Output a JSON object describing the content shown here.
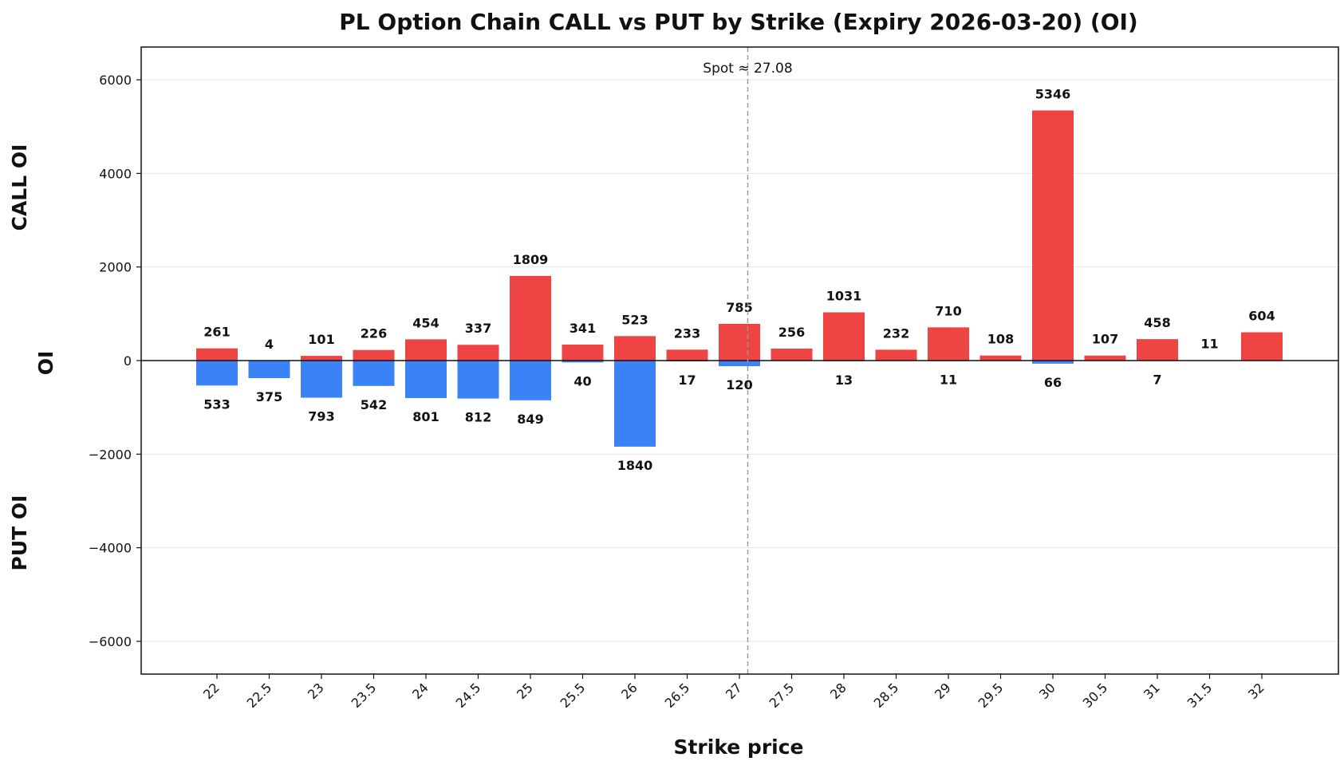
{
  "chart_data": {
    "type": "bar",
    "title": "PL Option Chain CALL vs PUT by Strike (Expiry 2026-03-20) (OI)",
    "xlabel": "Strike price",
    "ylabel": "OI",
    "ylabel_top": "CALL OI",
    "ylabel_bottom": "PUT OI",
    "ylim": [
      -6700,
      6700
    ],
    "yticks": [
      6000,
      4000,
      2000,
      0,
      -2000,
      -4000,
      -6000
    ],
    "ytick_labels": [
      "6000",
      "4000",
      "2000",
      "0",
      "−2000",
      "−4000",
      "−6000"
    ],
    "grid": true,
    "categories": [
      "22",
      "22.5",
      "23",
      "23.5",
      "24",
      "24.5",
      "25",
      "25.5",
      "26",
      "26.5",
      "27",
      "27.5",
      "28",
      "28.5",
      "29",
      "29.5",
      "30",
      "30.5",
      "31",
      "31.5",
      "32"
    ],
    "series": [
      {
        "color": "#ef4444",
        "values": [
          261,
          4,
          101,
          226,
          454,
          337,
          1809,
          341,
          523,
          233,
          785,
          256,
          1031,
          232,
          710,
          108,
          5346,
          107,
          458,
          11,
          604
        ]
      },
      {
        "color": "#3b82f6",
        "values": [
          533,
          375,
          793,
          542,
          801,
          812,
          849,
          40,
          1840,
          17,
          120,
          0,
          13,
          0,
          11,
          0,
          66,
          0,
          7,
          0,
          0
        ]
      }
    ],
    "spot": {
      "value": 27.08,
      "label": "Spot ≈ 27.08"
    }
  }
}
